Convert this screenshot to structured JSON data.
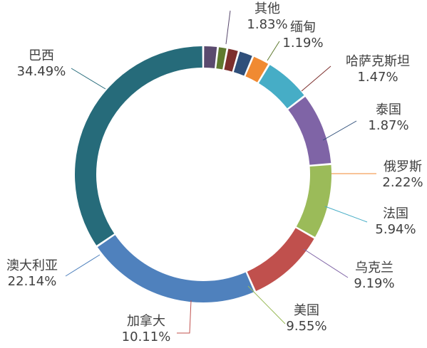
{
  "chart_data": {
    "type": "pie",
    "variant": "donut",
    "title": "",
    "start_angle_deg": 0,
    "direction": "clockwise",
    "slices": [
      {
        "name": "其他",
        "value": 1.83,
        "label": "1.83%",
        "color": "#5a4a6e"
      },
      {
        "name": "缅甸",
        "value": 1.19,
        "label": "1.19%",
        "color": "#5f7a2f"
      },
      {
        "name": "哈萨克斯坦",
        "value": 1.47,
        "label": "1.47%",
        "color": "#7d2f2d"
      },
      {
        "name": "泰国",
        "value": 1.87,
        "label": "1.87%",
        "color": "#2f4f7a"
      },
      {
        "name": "俄罗斯",
        "value": 2.22,
        "label": "2.22%",
        "color": "#f08a32"
      },
      {
        "name": "法国",
        "value": 5.94,
        "label": "5.94%",
        "color": "#46adc6"
      },
      {
        "name": "乌克兰",
        "value": 9.19,
        "label": "9.19%",
        "color": "#7f64a6"
      },
      {
        "name": "美国",
        "value": 9.55,
        "label": "9.55%",
        "color": "#9bbb59"
      },
      {
        "name": "加拿大",
        "value": 10.11,
        "label": "10.11%",
        "color": "#c0504d"
      },
      {
        "name": "澳大利亚",
        "value": 22.14,
        "label": "22.14%",
        "color": "#4f81bd"
      },
      {
        "name": "巴西",
        "value": 34.49,
        "label": "34.49%",
        "color": "#266b7a"
      }
    ]
  }
}
